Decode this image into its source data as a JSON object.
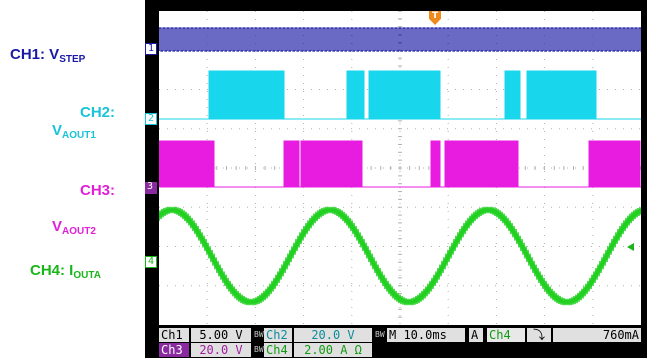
{
  "legend": {
    "ch1": {
      "main": "CH1: V",
      "sub": "STEP",
      "color": "#1a1aa6"
    },
    "ch2": {
      "main": "CH2:",
      "v": "V",
      "sub": "AOUT1",
      "color": "#19c4d8"
    },
    "ch3": {
      "main": "CH3:",
      "v": "V",
      "sub": "AOUT2",
      "color": "#e020d8"
    },
    "ch4": {
      "main": "CH4: I",
      "sub": "OUTA",
      "color": "#19b519"
    }
  },
  "channel_markers": [
    "1",
    "2",
    "3",
    "4"
  ],
  "trigger_marker": "T",
  "status": {
    "ch1_label": "Ch1",
    "ch1_scale": "5.00 V",
    "ch2_label": "Ch2",
    "ch2_scale": "20.0 V",
    "ch3_label": "Ch3",
    "ch3_scale": "20.0 V",
    "ch4_label": "Ch4",
    "ch4_scale": "2.00 A Ω",
    "bw_marker": "BW",
    "timebase": "M 10.0ms",
    "trigger_mode": "A",
    "trigger_source": "Ch4",
    "trigger_slope": "⤵",
    "trigger_level": "760mA"
  },
  "colors": {
    "ch1": "#1a1aa6",
    "ch2": "#19d6ec",
    "ch3": "#e81ce0",
    "ch4": "#22d022",
    "grid": "#b0b0b0",
    "screen_bg": "#ffffff",
    "bezel": "#000000"
  }
}
